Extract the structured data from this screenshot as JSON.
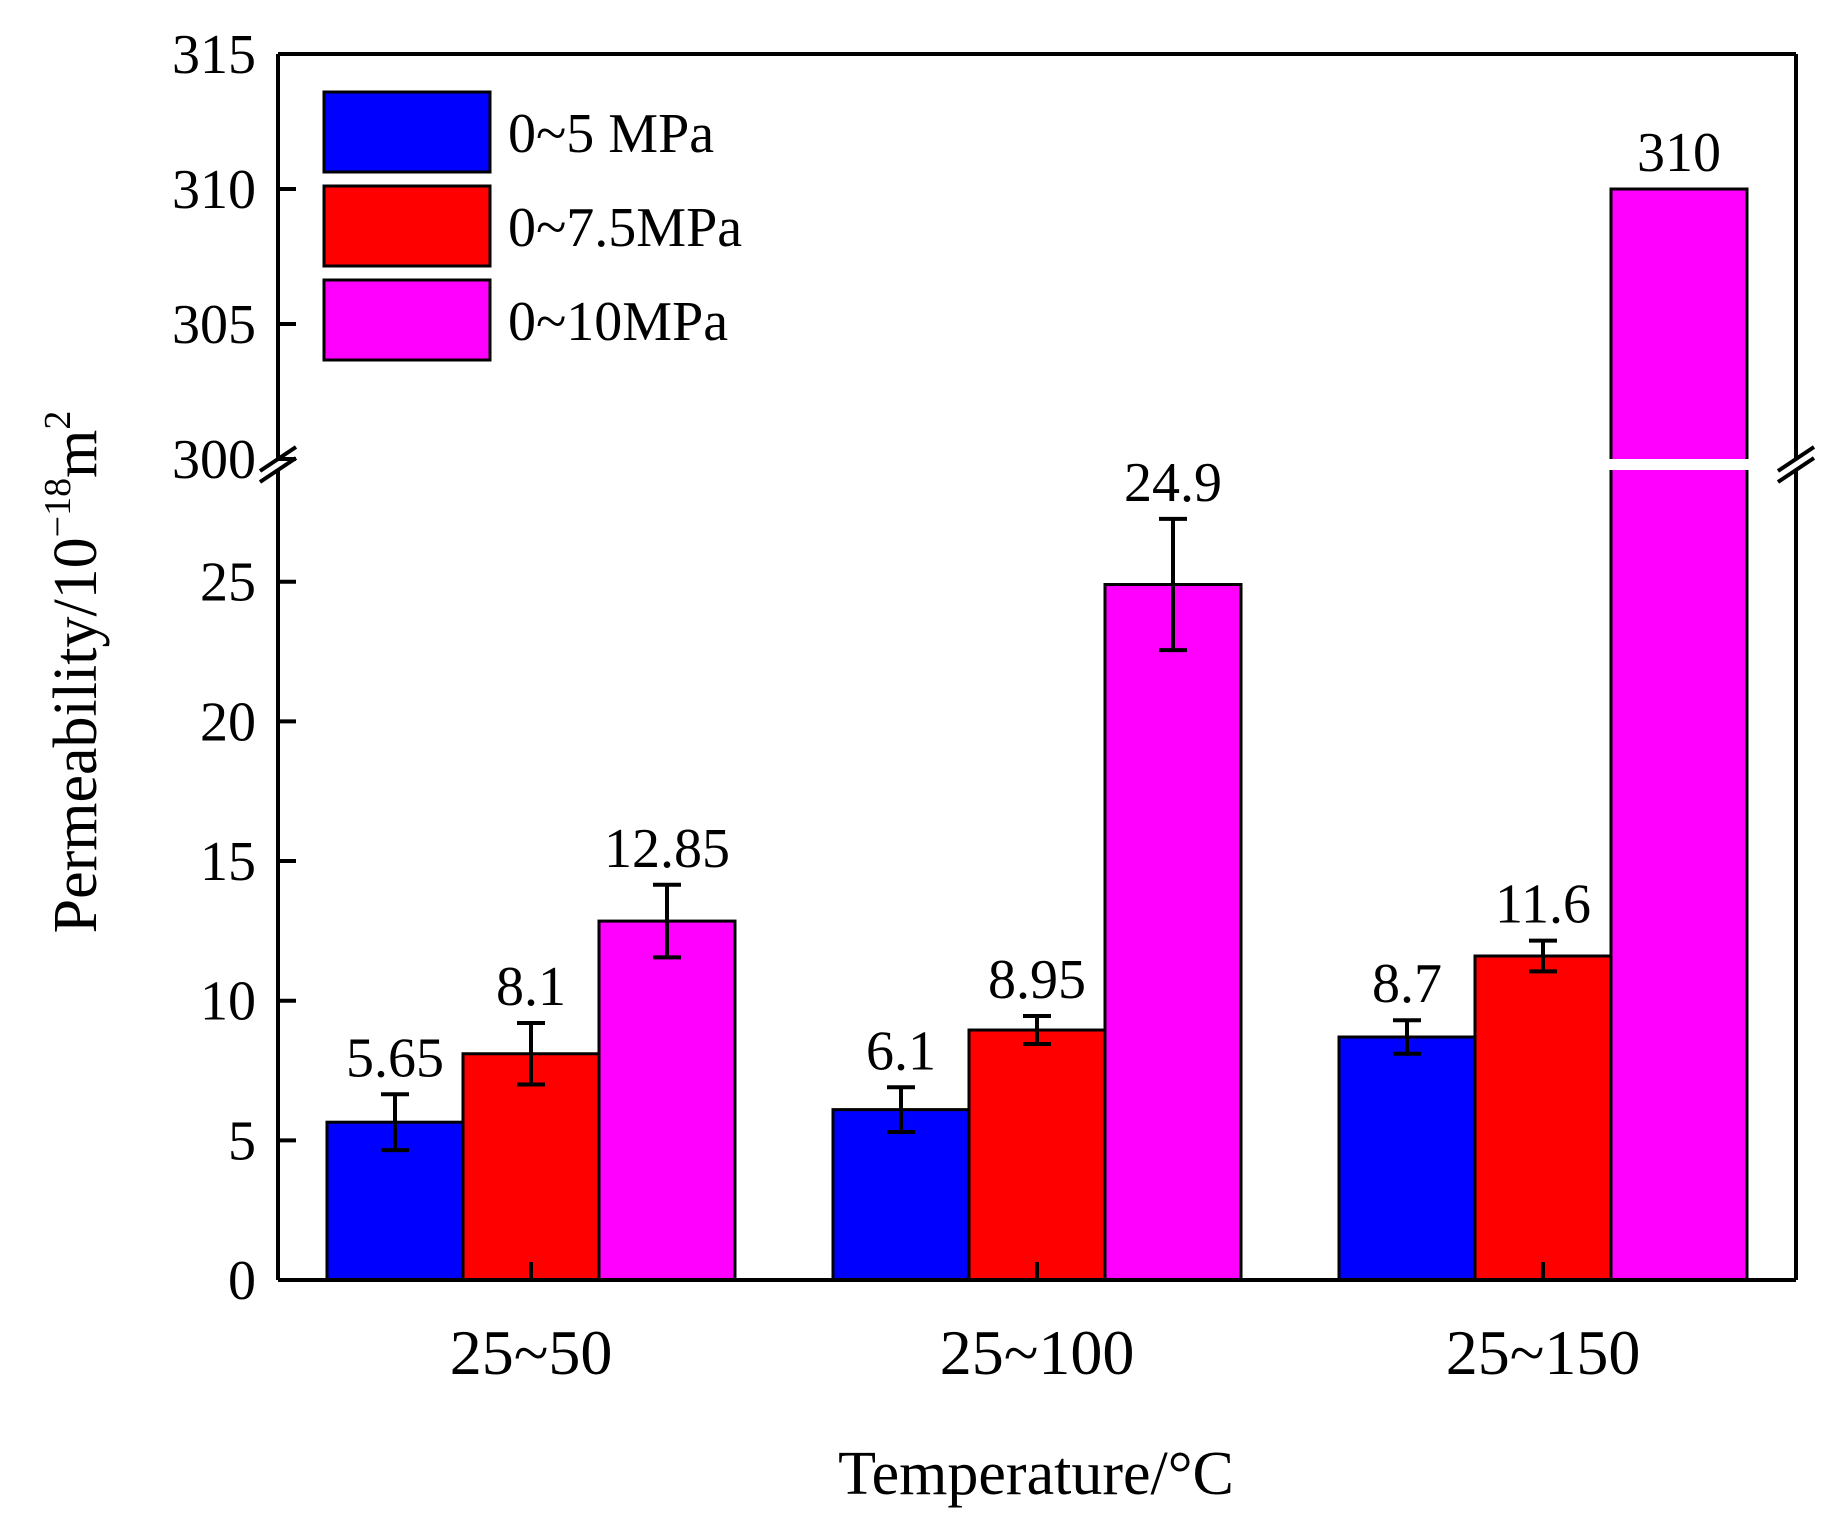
{
  "chart_data": {
    "type": "bar",
    "title": "",
    "xlabel": "Temperature/°C",
    "ylabel": "Permeability/10",
    "ylabel_exponent": "−18",
    "ylabel_unit": "m",
    "ylabel_unit_exponent": "2",
    "categories": [
      "25~50",
      "25~100",
      "25~150"
    ],
    "series": [
      {
        "name": "0~5 MPa",
        "color": "#0000ff",
        "values": [
          5.65,
          6.1,
          8.7
        ],
        "errors": [
          1.0,
          0.8,
          0.6
        ],
        "labels": [
          "5.65",
          "6.1",
          "8.7"
        ]
      },
      {
        "name": "0~7.5MPa",
        "color": "#ff0000",
        "values": [
          8.1,
          8.95,
          11.6
        ],
        "errors": [
          1.1,
          0.5,
          0.55
        ],
        "labels": [
          "8.1",
          "8.95",
          "11.6"
        ]
      },
      {
        "name": "0~10MPa",
        "color": "#ff00ff",
        "values": [
          12.85,
          24.9,
          310
        ],
        "errors": [
          1.3,
          2.35,
          0
        ],
        "labels": [
          "12.85",
          "24.9",
          "310"
        ]
      }
    ],
    "y_axis_break": true,
    "y_lower_range": [
      0,
      29
    ],
    "y_upper_range": [
      300,
      315
    ],
    "y_lower_ticks": [
      "0",
      "5",
      "10",
      "15",
      "20",
      "25"
    ],
    "y_upper_ticks": [
      "300",
      "305",
      "310",
      "315"
    ],
    "legend_position": "top-left",
    "grid": false
  }
}
